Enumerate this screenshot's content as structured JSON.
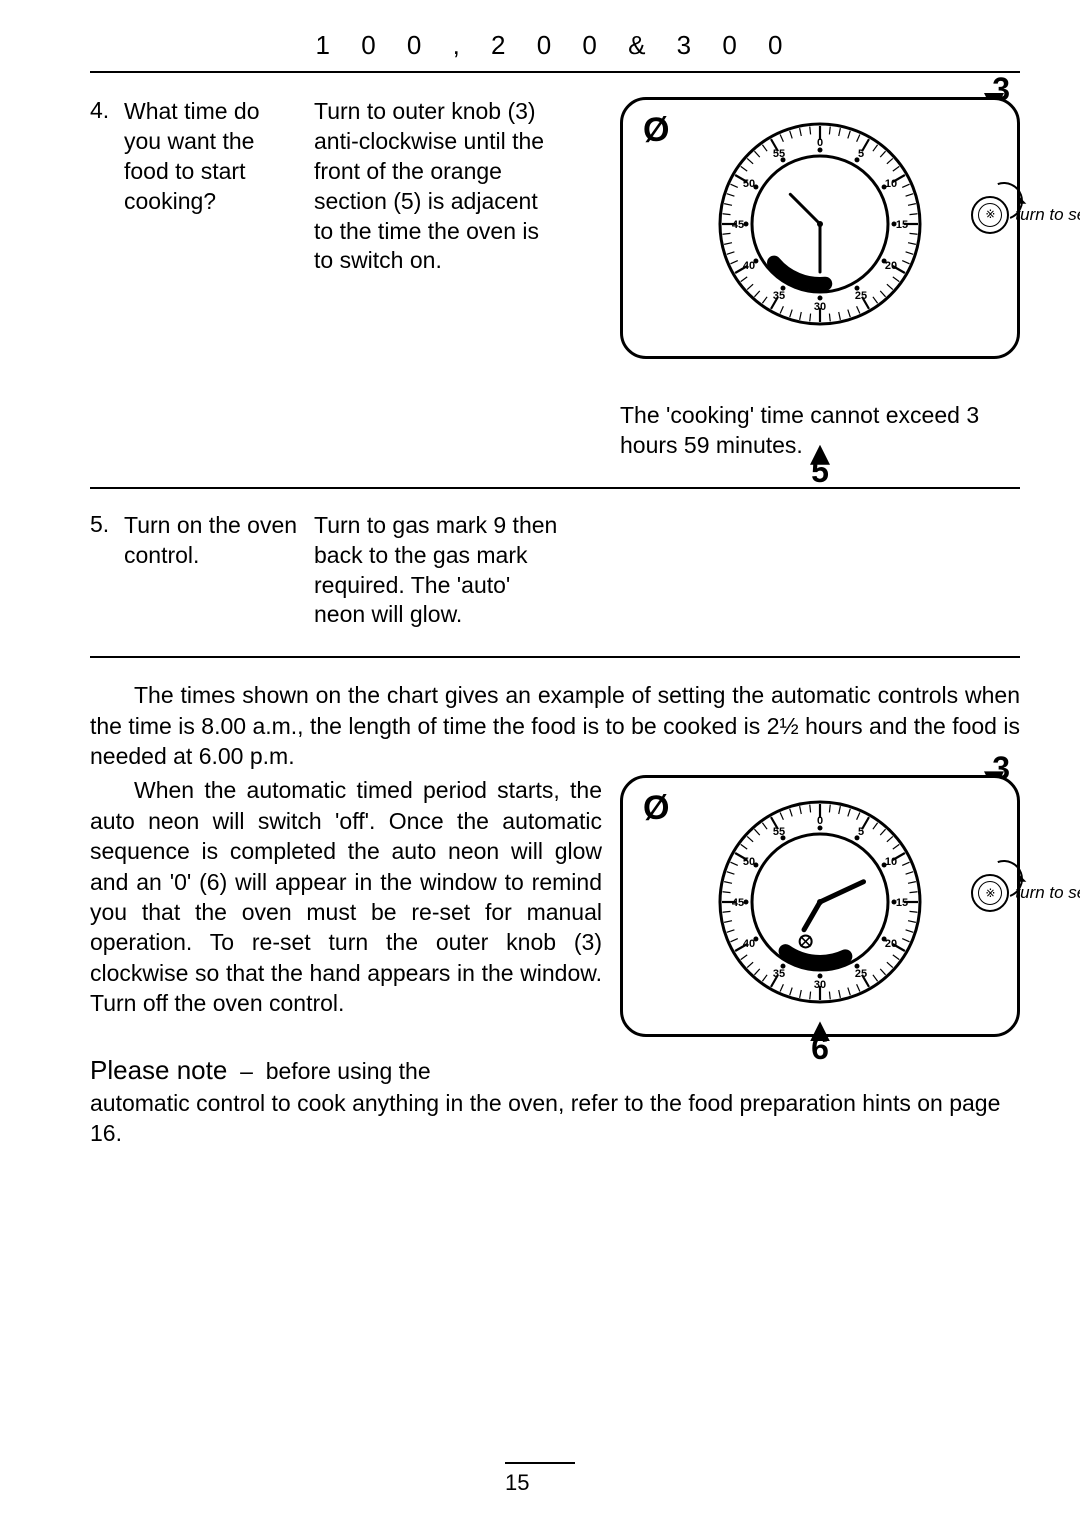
{
  "header": {
    "range": "1 0 0 ,   2 0 0   &   3 0 0"
  },
  "step4": {
    "num": "4.",
    "question": "What time do you want the food to start cooking?",
    "answer": "Turn to outer knob (3) anti-clockwise until the front of the orange section (5) is adjacent to the time the oven is to switch on.",
    "diagram": {
      "top_label": "3",
      "bottom_label": "5",
      "turn_label": "turn to set",
      "lock_glyph": "Ø",
      "dial_face": {
        "outer_radius": 100,
        "tick_ring_outer": 98,
        "tick_ring_inner": 84,
        "tick_count": 60,
        "minor_tick_len": 8,
        "major_tick_len": 14,
        "minute_labels": [
          {
            "text": "0",
            "angle": 0
          },
          {
            "text": "5",
            "angle": 30
          },
          {
            "text": "10",
            "angle": 60
          },
          {
            "text": "15",
            "angle": 90
          },
          {
            "text": "20",
            "angle": 120
          },
          {
            "text": "25",
            "angle": 150
          },
          {
            "text": "30",
            "angle": 180
          },
          {
            "text": "35",
            "angle": 210
          },
          {
            "text": "40",
            "angle": 240
          },
          {
            "text": "45",
            "angle": 270
          },
          {
            "text": "50",
            "angle": 300
          },
          {
            "text": "55",
            "angle": 330
          }
        ],
        "label_fontsize": 11,
        "orange_arc": {
          "start_angle": 175,
          "end_angle": 230,
          "radius": 60,
          "width": 14,
          "color": "#000000"
        },
        "hands": [
          {
            "angle": 180,
            "length": 48,
            "width": 3
          },
          {
            "angle": 315,
            "length": 42,
            "width": 3
          }
        ]
      }
    },
    "caption": "The 'cooking' time cannot exceed 3 hours 59 minutes."
  },
  "step5": {
    "num": "5.",
    "question": "Turn on the oven control.",
    "answer": "Turn to gas mark 9 then back to the gas mark required. The 'auto' neon will glow."
  },
  "explain": {
    "para1": "The times shown on the chart gives an example of setting the automatic controls when the time is 8.00 a.m., the length of time the food is to be cooked is 2½ hours and the food is needed at 6.00 p.m.",
    "para2": "When the automatic timed period starts, the auto neon will switch 'off'. Once the automatic sequence is completed the auto neon will glow and an '0' (6) will appear in the window to remind you that the oven must be re-set for manual operation. To re-set turn the outer knob (3) clockwise so that the hand appears in the window. Turn off the oven control.",
    "diagram": {
      "top_label": "3",
      "bottom_label": "6",
      "turn_label": "turn to set",
      "lock_glyph": "Ø",
      "dial_face": {
        "outer_radius": 100,
        "tick_ring_outer": 98,
        "tick_ring_inner": 84,
        "tick_count": 60,
        "minor_tick_len": 8,
        "major_tick_len": 14,
        "minute_labels": [
          {
            "text": "0",
            "angle": 0
          },
          {
            "text": "5",
            "angle": 30
          },
          {
            "text": "10",
            "angle": 60
          },
          {
            "text": "15",
            "angle": 90
          },
          {
            "text": "20",
            "angle": 120
          },
          {
            "text": "25",
            "angle": 150
          },
          {
            "text": "30",
            "angle": 180
          },
          {
            "text": "35",
            "angle": 210
          },
          {
            "text": "40",
            "angle": 240
          },
          {
            "text": "45",
            "angle": 270
          },
          {
            "text": "50",
            "angle": 300
          },
          {
            "text": "55",
            "angle": 330
          }
        ],
        "label_fontsize": 11,
        "orange_arc": {
          "start_angle": 155,
          "end_angle": 215,
          "radius": 60,
          "width": 14,
          "color": "#000000"
        },
        "hands": [
          {
            "angle": 65,
            "length": 48,
            "width": 5
          },
          {
            "angle": 210,
            "length": 32,
            "width": 5
          }
        ],
        "zero_marker": {
          "angle": 200,
          "radius": 42,
          "size": 12
        }
      }
    }
  },
  "note": {
    "lead": "Please note",
    "dash": "—",
    "body_start": "before using the",
    "body_rest": "automatic control to cook anything in the oven, refer to the food preparation hints on page 16."
  },
  "page_number": "15"
}
